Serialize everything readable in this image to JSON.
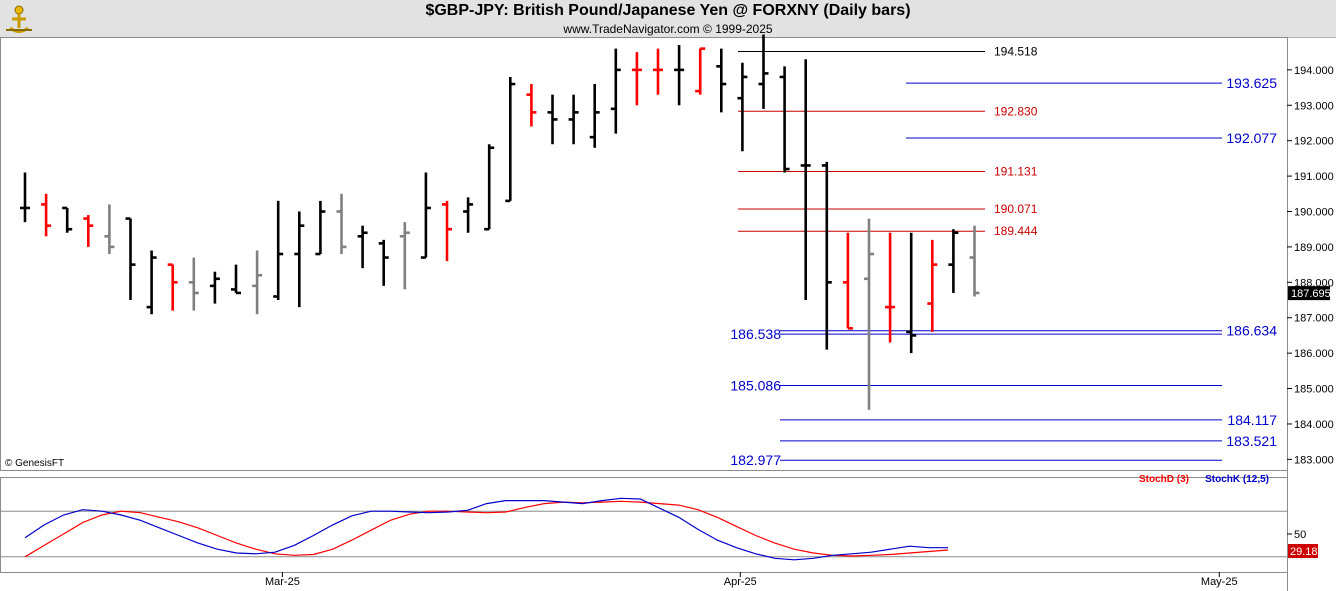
{
  "header": {
    "title": "$GBP-JPY:  British Pound/Japanese Yen @ FORXNY  (Daily bars)",
    "subtitle": "www.TradeNavigator.com © 1999-2025"
  },
  "footer": {
    "copyright": "© GenesisFT"
  },
  "colors": {
    "up": "#000000",
    "down": "#ff0000",
    "neutral": "#808080",
    "blue_level": "#0000cc",
    "red_level": "#cc0000",
    "stochD": "#ff0000",
    "stochK": "#0000cc",
    "lastPriceBg": "#000000"
  },
  "chart_data": [
    {
      "type": "ohlc",
      "ylim": [
        182.7,
        194.9
      ],
      "yticks": [
        183.0,
        184.0,
        185.0,
        186.0,
        187.0,
        188.0,
        189.0,
        190.0,
        191.0,
        192.0,
        193.0,
        194.0
      ],
      "ytick_labels": [
        "183.000",
        "184.000",
        "185.000",
        "186.000",
        "187.000",
        "188.000",
        "189.000",
        "190.000",
        "191.000",
        "192.000",
        "193.000",
        "194.000"
      ],
      "last_price": "187.695",
      "xlabels": [
        {
          "label": "Mar-25",
          "bar": 12.2
        },
        {
          "label": "Apr-25",
          "bar": 33.9
        },
        {
          "label": "May-25",
          "bar": 56.6
        }
      ],
      "bars": [
        {
          "o": 190.1,
          "h": 191.1,
          "l": 189.7,
          "c": 190.1,
          "color": "black"
        },
        {
          "o": 190.2,
          "h": 190.5,
          "l": 189.3,
          "c": 189.6,
          "color": "red"
        },
        {
          "o": 190.1,
          "h": 190.1,
          "l": 189.4,
          "c": 189.5,
          "color": "black"
        },
        {
          "o": 189.8,
          "h": 189.9,
          "l": 189.0,
          "c": 189.6,
          "color": "red"
        },
        {
          "o": 189.3,
          "h": 190.2,
          "l": 188.8,
          "c": 189.0,
          "color": "gray"
        },
        {
          "o": 189.8,
          "h": 189.8,
          "l": 187.5,
          "c": 188.5,
          "color": "black"
        },
        {
          "o": 187.3,
          "h": 188.9,
          "l": 187.1,
          "c": 188.7,
          "color": "black"
        },
        {
          "o": 188.5,
          "h": 188.5,
          "l": 187.2,
          "c": 188.0,
          "color": "red"
        },
        {
          "o": 188.0,
          "h": 188.7,
          "l": 187.2,
          "c": 187.7,
          "color": "gray"
        },
        {
          "o": 187.9,
          "h": 188.3,
          "l": 187.4,
          "c": 188.1,
          "color": "black"
        },
        {
          "o": 187.8,
          "h": 188.5,
          "l": 187.7,
          "c": 187.7,
          "color": "black"
        },
        {
          "o": 187.9,
          "h": 188.9,
          "l": 187.1,
          "c": 188.2,
          "color": "gray"
        },
        {
          "o": 187.6,
          "h": 190.3,
          "l": 187.5,
          "c": 188.8,
          "color": "black"
        },
        {
          "o": 188.8,
          "h": 190.0,
          "l": 187.3,
          "c": 189.6,
          "color": "black"
        },
        {
          "o": 188.8,
          "h": 190.3,
          "l": 188.8,
          "c": 190.0,
          "color": "black"
        },
        {
          "o": 190.0,
          "h": 190.5,
          "l": 188.8,
          "c": 189.0,
          "color": "gray"
        },
        {
          "o": 189.3,
          "h": 189.6,
          "l": 188.4,
          "c": 189.4,
          "color": "black"
        },
        {
          "o": 189.1,
          "h": 189.2,
          "l": 187.9,
          "c": 188.7,
          "color": "black"
        },
        {
          "o": 189.3,
          "h": 189.7,
          "l": 187.8,
          "c": 189.4,
          "color": "gray"
        },
        {
          "o": 188.7,
          "h": 191.1,
          "l": 188.7,
          "c": 190.1,
          "color": "black"
        },
        {
          "o": 190.2,
          "h": 190.3,
          "l": 188.6,
          "c": 189.5,
          "color": "red"
        },
        {
          "o": 190.0,
          "h": 190.4,
          "l": 189.4,
          "c": 190.2,
          "color": "black"
        },
        {
          "o": 189.5,
          "h": 191.9,
          "l": 189.5,
          "c": 191.8,
          "color": "black"
        },
        {
          "o": 190.3,
          "h": 193.8,
          "l": 190.3,
          "c": 193.6,
          "color": "black"
        },
        {
          "o": 193.3,
          "h": 193.6,
          "l": 192.4,
          "c": 192.8,
          "color": "red"
        },
        {
          "o": 192.8,
          "h": 193.3,
          "l": 191.9,
          "c": 192.6,
          "color": "black"
        },
        {
          "o": 192.6,
          "h": 193.3,
          "l": 191.9,
          "c": 192.8,
          "color": "black"
        },
        {
          "o": 192.1,
          "h": 193.6,
          "l": 191.8,
          "c": 192.8,
          "color": "black"
        },
        {
          "o": 192.9,
          "h": 194.6,
          "l": 192.2,
          "c": 194.0,
          "color": "black"
        },
        {
          "o": 194.0,
          "h": 194.5,
          "l": 193.0,
          "c": 194.0,
          "color": "red"
        },
        {
          "o": 194.0,
          "h": 194.6,
          "l": 193.3,
          "c": 194.0,
          "color": "red"
        },
        {
          "o": 194.0,
          "h": 194.7,
          "l": 193.0,
          "c": 194.0,
          "color": "black"
        },
        {
          "o": 193.4,
          "h": 194.6,
          "l": 193.3,
          "c": 194.6,
          "color": "red"
        },
        {
          "o": 194.1,
          "h": 194.6,
          "l": 192.8,
          "c": 193.6,
          "color": "black"
        },
        {
          "o": 193.2,
          "h": 194.2,
          "l": 191.7,
          "c": 193.8,
          "color": "black"
        },
        {
          "o": 193.6,
          "h": 195.0,
          "l": 192.9,
          "c": 193.9,
          "color": "black"
        },
        {
          "o": 193.8,
          "h": 194.1,
          "l": 191.1,
          "c": 191.2,
          "color": "black"
        },
        {
          "o": 191.3,
          "h": 194.3,
          "l": 187.5,
          "c": 191.3,
          "color": "black"
        },
        {
          "o": 191.3,
          "h": 191.4,
          "l": 186.1,
          "c": 188.0,
          "color": "black"
        },
        {
          "o": 188.0,
          "h": 189.4,
          "l": 186.7,
          "c": 186.7,
          "color": "red"
        },
        {
          "o": 188.1,
          "h": 189.8,
          "l": 184.4,
          "c": 188.8,
          "color": "gray"
        },
        {
          "o": 187.3,
          "h": 189.4,
          "l": 186.3,
          "c": 187.3,
          "color": "red"
        },
        {
          "o": 186.6,
          "h": 189.4,
          "l": 186.0,
          "c": 186.5,
          "color": "black"
        },
        {
          "o": 187.4,
          "h": 189.2,
          "l": 186.6,
          "c": 188.5,
          "color": "red"
        },
        {
          "o": 188.5,
          "h": 189.5,
          "l": 187.7,
          "c": 189.4,
          "color": "black"
        },
        {
          "o": 188.7,
          "h": 189.6,
          "l": 187.6,
          "c": 187.7,
          "color": "gray"
        }
      ],
      "levels": [
        {
          "price": 194.518,
          "label": "194.518",
          "color": "black"
        },
        {
          "price": 193.625,
          "label": "193.625",
          "color": "blue"
        },
        {
          "price": 192.83,
          "label": "192.830",
          "color": "red"
        },
        {
          "price": 192.077,
          "label": "192.077",
          "color": "blue"
        },
        {
          "price": 191.131,
          "label": "191.131",
          "color": "red"
        },
        {
          "price": 190.071,
          "label": "190.071",
          "color": "red"
        },
        {
          "price": 189.444,
          "label": "189.444",
          "color": "red"
        },
        {
          "price": 186.634,
          "label": "186.634",
          "color": "blue"
        },
        {
          "price": 186.538,
          "label": "186.538",
          "color": "blue"
        },
        {
          "price": 185.086,
          "label": "185.086",
          "color": "blue"
        },
        {
          "price": 184.117,
          "label": "184.117",
          "color": "blue"
        },
        {
          "price": 183.521,
          "label": "183.521",
          "color": "blue"
        },
        {
          "price": 182.977,
          "label": "182.977",
          "color": "blue"
        }
      ]
    },
    {
      "type": "line",
      "ylim": [
        0,
        100
      ],
      "yticks": [
        50
      ],
      "ytick_labels": [
        "50"
      ],
      "last_value": "29.18",
      "series": [
        {
          "name": "StochD (3)",
          "color": "#ff0000",
          "values": [
            20,
            35,
            50,
            65,
            75,
            80,
            78,
            72,
            66,
            58,
            48,
            38,
            30,
            24,
            22,
            23,
            30,
            42,
            55,
            68,
            76,
            80,
            80,
            79,
            78,
            79,
            85,
            90,
            92,
            91,
            92,
            93,
            92,
            90,
            88,
            82,
            72,
            60,
            48,
            38,
            30,
            25,
            22,
            21,
            22,
            23,
            25,
            27,
            29
          ]
        },
        {
          "name": "StochK (12,5)",
          "color": "#0000cc",
          "values": [
            45,
            62,
            75,
            82,
            80,
            75,
            68,
            58,
            48,
            38,
            30,
            25,
            24,
            26,
            35,
            48,
            62,
            74,
            80,
            80,
            79,
            78,
            79,
            81,
            90,
            94,
            94,
            94,
            92,
            90,
            94,
            97,
            96,
            84,
            72,
            56,
            42,
            32,
            24,
            18,
            16,
            18,
            22,
            24,
            26,
            30,
            34,
            32,
            32
          ]
        }
      ]
    }
  ]
}
